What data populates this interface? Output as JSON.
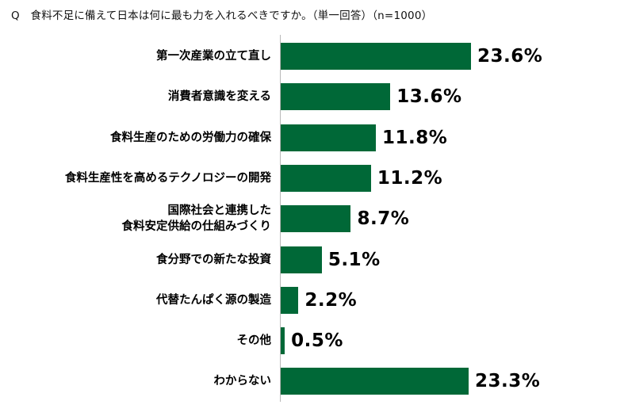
{
  "title": "Q　食料不足に備えて日本は何に最も力を入れるべきですか。（単一回答）（n=1000）",
  "colors": {
    "bar": "#006837",
    "axis": "#b8b8b8"
  },
  "chart_data": {
    "type": "bar",
    "orientation": "horizontal",
    "title": "Q　食料不足に備えて日本は何に最も力を入れるべきですか。（単一回答）（n=1000）",
    "xlabel": "",
    "ylabel": "",
    "grid": false,
    "legend": null,
    "unit": "%",
    "categories": [
      "第一次産業の立て直し",
      "消費者意識を変える",
      "食料生産のための労働力の確保",
      "食料生産性を高めるテクノロジーの開発",
      "国際社会と連携した食料安定供給の仕組みづくり",
      "食分野での新たな投資",
      "代替たんぱく源の製造",
      "その他",
      "わからない"
    ],
    "values": [
      23.6,
      13.6,
      11.8,
      11.2,
      8.7,
      5.1,
      2.2,
      0.5,
      23.3
    ],
    "value_labels": [
      "23.6%",
      "13.6%",
      "11.8%",
      "11.2%",
      "8.7%",
      "5.1%",
      "2.2%",
      "0.5%",
      "23.3%"
    ]
  },
  "rows": [
    {
      "label_lines": [
        "第一次産業の立て直し"
      ],
      "value": 23.6,
      "value_label": "23.6%"
    },
    {
      "label_lines": [
        "消費者意識を変える"
      ],
      "value": 13.6,
      "value_label": "13.6%"
    },
    {
      "label_lines": [
        "食料生産のための労働力の確保"
      ],
      "value": 11.8,
      "value_label": "11.8%"
    },
    {
      "label_lines": [
        "食料生産性を高めるテクノロジーの開発"
      ],
      "value": 11.2,
      "value_label": "11.2%"
    },
    {
      "label_lines": [
        "国際社会と連携した",
        "食料安定供給の仕組みづくり"
      ],
      "value": 8.7,
      "value_label": "8.7%"
    },
    {
      "label_lines": [
        "食分野での新たな投資"
      ],
      "value": 5.1,
      "value_label": "5.1%"
    },
    {
      "label_lines": [
        "代替たんぱく源の製造"
      ],
      "value": 2.2,
      "value_label": "2.2%"
    },
    {
      "label_lines": [
        "その他"
      ],
      "value": 0.5,
      "value_label": "0.5%"
    },
    {
      "label_lines": [
        "わからない"
      ],
      "value": 23.3,
      "value_label": "23.3%"
    }
  ]
}
